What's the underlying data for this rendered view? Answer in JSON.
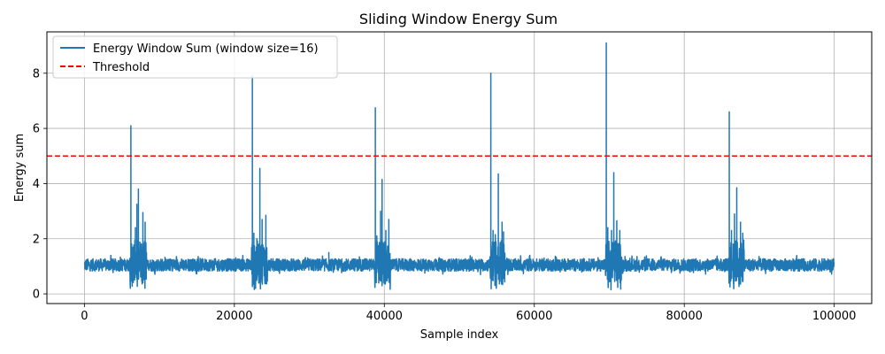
{
  "chart_data": {
    "type": "line",
    "title": "Sliding Window Energy Sum",
    "xlabel": "Sample index",
    "ylabel": "Energy sum",
    "xlim": [
      -5000,
      105000
    ],
    "ylim": [
      -0.35,
      9.5
    ],
    "xticks": [
      0,
      20000,
      40000,
      60000,
      80000,
      100000
    ],
    "xtick_labels": [
      "0",
      "20000",
      "40000",
      "60000",
      "80000",
      "100000"
    ],
    "yticks": [
      0,
      2,
      4,
      6,
      8
    ],
    "ytick_labels": [
      "0",
      "2",
      "4",
      "6",
      "8"
    ],
    "grid": true,
    "legend_position": "top-left",
    "series": [
      {
        "name": "Energy Window Sum (window size=16)",
        "color": "#1f77b4",
        "style": "solid",
        "baseline_mean": 1.05,
        "baseline_band": [
          0.7,
          1.4
        ],
        "x_range": [
          0,
          100000
        ],
        "bursts": [
          {
            "x": 6200,
            "peak": 6.1,
            "secondary": [
              [
                6800,
                2.4
              ],
              [
                7000,
                3.25
              ],
              [
                7200,
                3.8
              ],
              [
                7800,
                2.95
              ],
              [
                8100,
                2.6
              ]
            ],
            "end": 8200
          },
          {
            "x": 22400,
            "peak": 7.9,
            "secondary": [
              [
                22600,
                2.2
              ],
              [
                23000,
                2.0
              ],
              [
                23400,
                4.55
              ],
              [
                23700,
                2.7
              ],
              [
                24200,
                2.85
              ]
            ],
            "end": 24300
          },
          {
            "x": 38800,
            "peak": 6.75,
            "secondary": [
              [
                39000,
                2.1
              ],
              [
                39500,
                3.0
              ],
              [
                39700,
                4.15
              ],
              [
                40200,
                2.3
              ],
              [
                40600,
                2.7
              ]
            ],
            "end": 40700
          },
          {
            "x": 54200,
            "peak": 8.0,
            "secondary": [
              [
                54500,
                2.3
              ],
              [
                54800,
                2.15
              ],
              [
                55200,
                4.35
              ],
              [
                55700,
                2.6
              ],
              [
                55900,
                2.25
              ]
            ],
            "end": 56000
          },
          {
            "x": 69600,
            "peak": 9.1,
            "secondary": [
              [
                69800,
                2.4
              ],
              [
                70300,
                2.3
              ],
              [
                70600,
                4.4
              ],
              [
                71000,
                2.65
              ],
              [
                71400,
                2.3
              ]
            ],
            "end": 71500
          },
          {
            "x": 86000,
            "peak": 6.6,
            "secondary": [
              [
                86300,
                2.3
              ],
              [
                86700,
                2.9
              ],
              [
                87000,
                3.85
              ],
              [
                87500,
                2.6
              ],
              [
                87800,
                2.2
              ]
            ],
            "end": 87900
          }
        ],
        "minor_spikes": [
          [
            32600,
            1.5
          ]
        ]
      },
      {
        "name": "Threshold",
        "color": "#ff0000",
        "style": "dashed",
        "value": 5
      }
    ]
  }
}
